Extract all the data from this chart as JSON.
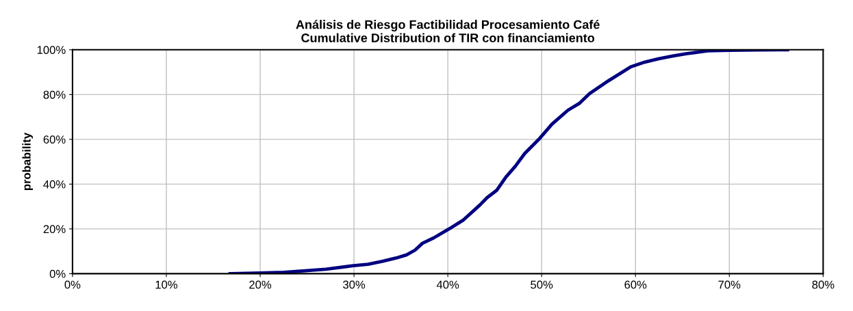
{
  "chart_data": {
    "type": "line",
    "title": "Análisis de Riesgo Factibilidad Procesamiento Café\nCumulative Distribution of TIR con financiamiento",
    "ylabel": "probability",
    "xlim": [
      0,
      0.8
    ],
    "xticks": [
      {
        "value": 0,
        "label": "0%"
      },
      {
        "value": 0.1,
        "label": "10%"
      },
      {
        "value": 0.2,
        "label": "20%"
      },
      {
        "value": 0.3,
        "label": "30%"
      },
      {
        "value": 0.4,
        "label": "40%"
      },
      {
        "value": 0.5,
        "label": "50%"
      },
      {
        "value": 0.6,
        "label": "60%"
      },
      {
        "value": 0.7,
        "label": "70%"
      },
      {
        "value": 0.8,
        "label": "80%"
      }
    ],
    "ylim": [
      0,
      1
    ],
    "yticks": [
      {
        "value": 0,
        "label": "0%"
      },
      {
        "value": 0.2,
        "label": "20%"
      },
      {
        "value": 0.4,
        "label": "40%"
      },
      {
        "value": 0.6,
        "label": "60%"
      },
      {
        "value": 0.8,
        "label": "80%"
      },
      {
        "value": 1,
        "label": "100%"
      }
    ],
    "grid": true,
    "marker": "none",
    "line_style": "solid",
    "series": [
      {
        "color": "#000080",
        "x": [
          0.168,
          0.2,
          0.225,
          0.248,
          0.27,
          0.298,
          0.315,
          0.33,
          0.345,
          0.356,
          0.365,
          0.373,
          0.385,
          0.401,
          0.416,
          0.434,
          0.442,
          0.452,
          0.462,
          0.472,
          0.482,
          0.497,
          0.511,
          0.528,
          0.54,
          0.551,
          0.571,
          0.595,
          0.61,
          0.625,
          0.64,
          0.654,
          0.677,
          0.7,
          0.73,
          0.754,
          0.762
        ],
        "values": [
          0.0,
          0.003,
          0.006,
          0.013,
          0.02,
          0.035,
          0.042,
          0.055,
          0.07,
          0.084,
          0.105,
          0.136,
          0.16,
          0.199,
          0.238,
          0.306,
          0.34,
          0.372,
          0.432,
          0.48,
          0.537,
          0.6,
          0.668,
          0.73,
          0.76,
          0.804,
          0.861,
          0.924,
          0.945,
          0.96,
          0.972,
          0.982,
          0.995,
          0.998,
          0.999,
          1.0,
          1.0
        ]
      }
    ]
  }
}
